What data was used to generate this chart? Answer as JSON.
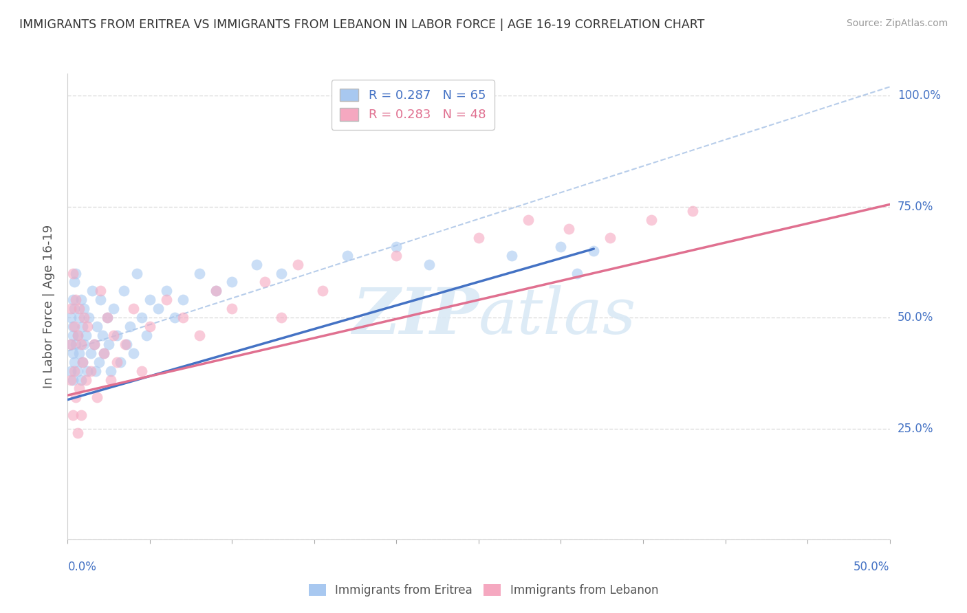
{
  "title": "IMMIGRANTS FROM ERITREA VS IMMIGRANTS FROM LEBANON IN LABOR FORCE | AGE 16-19 CORRELATION CHART",
  "source": "Source: ZipAtlas.com",
  "ylabel": "In Labor Force | Age 16-19",
  "xlim": [
    0.0,
    0.5
  ],
  "ylim": [
    0.0,
    1.05
  ],
  "eritrea_R": 0.287,
  "eritrea_N": 65,
  "lebanon_R": 0.283,
  "lebanon_N": 48,
  "eritrea_color": "#A8C8F0",
  "lebanon_color": "#F5A8C0",
  "eritrea_line_color": "#4472C4",
  "lebanon_line_color": "#E07090",
  "reference_line_color": "#A8C8F0",
  "background_color": "#FFFFFF",
  "grid_color": "#DDDDDD",
  "title_color": "#333333",
  "axis_label_color": "#4472C4",
  "legend_label_eritrea": "R = 0.287   N = 65",
  "legend_label_lebanon": "R = 0.283   N = 48",
  "watermark_color": "#D0E4F8",
  "eritrea_line_x0": 0.0,
  "eritrea_line_y0": 0.315,
  "eritrea_line_x1": 0.32,
  "eritrea_line_y1": 0.655,
  "lebanon_line_x0": 0.0,
  "lebanon_line_y0": 0.325,
  "lebanon_line_x1": 0.5,
  "lebanon_line_y1": 0.755,
  "ref_line_x0": 0.08,
  "ref_line_y0": 0.52,
  "ref_line_x1": 0.5,
  "ref_line_y1": 1.02,
  "eritrea_x": [
    0.002,
    0.002,
    0.002,
    0.003,
    0.003,
    0.003,
    0.003,
    0.003,
    0.004,
    0.004,
    0.004,
    0.005,
    0.005,
    0.006,
    0.006,
    0.007,
    0.007,
    0.008,
    0.008,
    0.009,
    0.009,
    0.01,
    0.01,
    0.011,
    0.012,
    0.013,
    0.014,
    0.015,
    0.016,
    0.017,
    0.018,
    0.019,
    0.02,
    0.021,
    0.022,
    0.024,
    0.025,
    0.026,
    0.028,
    0.03,
    0.032,
    0.034,
    0.036,
    0.038,
    0.04,
    0.042,
    0.045,
    0.048,
    0.05,
    0.055,
    0.06,
    0.065,
    0.07,
    0.08,
    0.09,
    0.1,
    0.115,
    0.13,
    0.17,
    0.2,
    0.22,
    0.27,
    0.3,
    0.31,
    0.32
  ],
  "eritrea_y": [
    0.44,
    0.5,
    0.38,
    0.46,
    0.54,
    0.42,
    0.48,
    0.36,
    0.52,
    0.4,
    0.58,
    0.44,
    0.6,
    0.46,
    0.38,
    0.5,
    0.42,
    0.54,
    0.36,
    0.48,
    0.4,
    0.44,
    0.52,
    0.46,
    0.38,
    0.5,
    0.42,
    0.56,
    0.44,
    0.38,
    0.48,
    0.4,
    0.54,
    0.46,
    0.42,
    0.5,
    0.44,
    0.38,
    0.52,
    0.46,
    0.4,
    0.56,
    0.44,
    0.48,
    0.42,
    0.6,
    0.5,
    0.46,
    0.54,
    0.52,
    0.56,
    0.5,
    0.54,
    0.6,
    0.56,
    0.58,
    0.62,
    0.6,
    0.64,
    0.66,
    0.62,
    0.64,
    0.66,
    0.6,
    0.65
  ],
  "lebanon_x": [
    0.002,
    0.002,
    0.002,
    0.003,
    0.003,
    0.004,
    0.004,
    0.005,
    0.005,
    0.006,
    0.006,
    0.007,
    0.007,
    0.008,
    0.008,
    0.009,
    0.01,
    0.011,
    0.012,
    0.014,
    0.016,
    0.018,
    0.02,
    0.022,
    0.024,
    0.026,
    0.028,
    0.03,
    0.035,
    0.04,
    0.045,
    0.05,
    0.06,
    0.07,
    0.08,
    0.09,
    0.1,
    0.12,
    0.13,
    0.14,
    0.155,
    0.2,
    0.25,
    0.28,
    0.305,
    0.33,
    0.355,
    0.38
  ],
  "lebanon_y": [
    0.52,
    0.36,
    0.44,
    0.6,
    0.28,
    0.48,
    0.38,
    0.54,
    0.32,
    0.46,
    0.24,
    0.52,
    0.34,
    0.44,
    0.28,
    0.4,
    0.5,
    0.36,
    0.48,
    0.38,
    0.44,
    0.32,
    0.56,
    0.42,
    0.5,
    0.36,
    0.46,
    0.4,
    0.44,
    0.52,
    0.38,
    0.48,
    0.54,
    0.5,
    0.46,
    0.56,
    0.52,
    0.58,
    0.5,
    0.62,
    0.56,
    0.64,
    0.68,
    0.72,
    0.7,
    0.68,
    0.72,
    0.74
  ]
}
